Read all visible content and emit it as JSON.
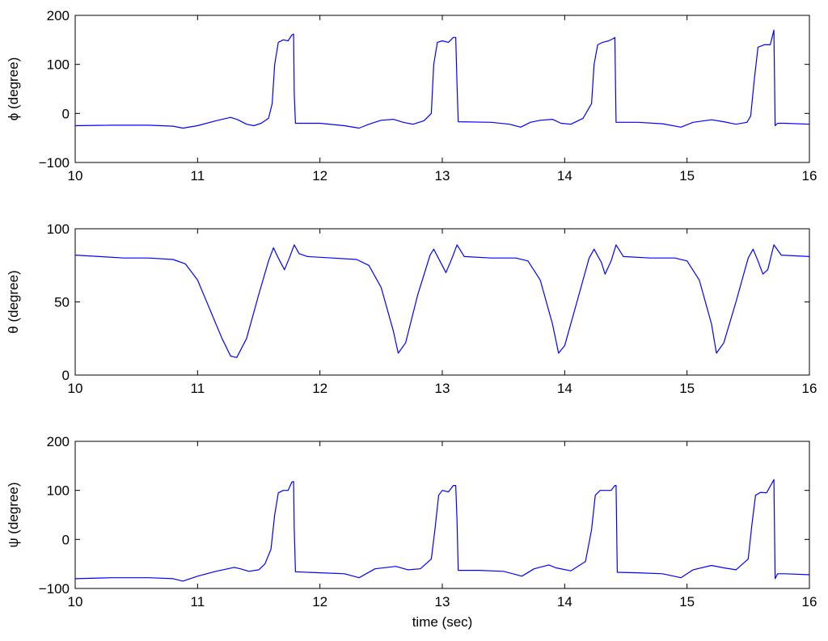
{
  "chart_data": [
    {
      "type": "line",
      "ylabel": "ϕ (degree)",
      "xlabel": "",
      "xlim": [
        10,
        16
      ],
      "ylim": [
        -100,
        200
      ],
      "xticks": [
        10,
        11,
        12,
        13,
        14,
        15,
        16
      ],
      "yticks": [
        -100,
        0,
        100,
        200
      ],
      "grid": false,
      "color": "#0000ff",
      "series": [
        {
          "x": [
            10.0,
            10.3,
            10.6,
            10.8,
            10.88,
            11.0,
            11.15,
            11.27,
            11.33,
            11.4,
            11.46,
            11.52,
            11.58,
            11.61,
            11.63,
            11.66,
            11.7,
            11.74,
            11.77,
            11.785,
            11.79,
            11.8,
            12.0,
            12.2,
            12.32,
            12.4,
            12.5,
            12.6,
            12.68,
            12.76,
            12.85,
            12.91,
            12.93,
            12.96,
            13.0,
            13.05,
            13.09,
            13.11,
            13.12,
            13.13,
            13.4,
            13.55,
            13.64,
            13.72,
            13.8,
            13.9,
            13.97,
            14.05,
            14.15,
            14.22,
            14.24,
            14.27,
            14.31,
            14.36,
            14.4,
            14.41,
            14.42,
            14.6,
            14.8,
            14.95,
            15.05,
            15.2,
            15.3,
            15.4,
            15.49,
            15.52,
            15.55,
            15.58,
            15.63,
            15.68,
            15.71,
            15.72,
            15.74,
            15.8,
            16.0
          ],
          "y": [
            -25,
            -24,
            -24,
            -26,
            -30,
            -25,
            -15,
            -8,
            -13,
            -22,
            -25,
            -20,
            -10,
            20,
            100,
            145,
            150,
            148,
            160,
            162,
            40,
            -20,
            -20,
            -25,
            -30,
            -22,
            -14,
            -12,
            -18,
            -22,
            -15,
            0,
            100,
            145,
            148,
            145,
            155,
            155,
            60,
            -17,
            -18,
            -22,
            -28,
            -18,
            -14,
            -12,
            -20,
            -22,
            -10,
            20,
            100,
            140,
            145,
            148,
            153,
            155,
            -18,
            -18,
            -21,
            -28,
            -18,
            -13,
            -17,
            -22,
            -18,
            -5,
            70,
            135,
            140,
            140,
            170,
            -25,
            -20,
            -20,
            -22
          ]
        }
      ]
    },
    {
      "type": "line",
      "ylabel": "θ (degree)",
      "xlabel": "",
      "xlim": [
        10,
        16
      ],
      "ylim": [
        0,
        100
      ],
      "xticks": [
        10,
        11,
        12,
        13,
        14,
        15,
        16
      ],
      "yticks": [
        0,
        50,
        100
      ],
      "grid": false,
      "color": "#0000ff",
      "series": [
        {
          "x": [
            10.0,
            10.2,
            10.4,
            10.6,
            10.8,
            10.9,
            11.0,
            11.1,
            11.2,
            11.27,
            11.32,
            11.4,
            11.5,
            11.58,
            11.62,
            11.66,
            11.71,
            11.75,
            11.79,
            11.83,
            11.9,
            12.1,
            12.3,
            12.4,
            12.5,
            12.6,
            12.64,
            12.7,
            12.8,
            12.9,
            12.93,
            12.98,
            13.03,
            13.08,
            13.12,
            13.18,
            13.4,
            13.6,
            13.7,
            13.8,
            13.9,
            13.95,
            14.0,
            14.1,
            14.2,
            14.24,
            14.3,
            14.33,
            14.38,
            14.42,
            14.48,
            14.7,
            14.9,
            15.0,
            15.1,
            15.2,
            15.24,
            15.3,
            15.4,
            15.5,
            15.54,
            15.58,
            15.62,
            15.66,
            15.71,
            15.77,
            16.0
          ],
          "y": [
            82,
            81,
            80,
            80,
            79,
            76,
            65,
            45,
            25,
            13,
            12,
            25,
            55,
            78,
            87,
            80,
            72,
            80,
            89,
            83,
            81,
            80,
            79,
            75,
            60,
            30,
            15,
            22,
            55,
            82,
            86,
            78,
            70,
            80,
            89,
            81,
            80,
            80,
            78,
            65,
            35,
            15,
            20,
            50,
            80,
            86,
            77,
            69,
            78,
            89,
            81,
            80,
            80,
            78,
            65,
            35,
            15,
            22,
            50,
            80,
            86,
            78,
            69,
            72,
            89,
            82,
            81
          ]
        }
      ]
    },
    {
      "type": "line",
      "ylabel": "ψ (degree)",
      "xlabel": "time (sec)",
      "xlim": [
        10,
        16
      ],
      "ylim": [
        -100,
        200
      ],
      "xticks": [
        10,
        11,
        12,
        13,
        14,
        15,
        16
      ],
      "yticks": [
        -100,
        0,
        100,
        200
      ],
      "grid": false,
      "color": "#0000ff",
      "series": [
        {
          "x": [
            10.0,
            10.3,
            10.6,
            10.8,
            10.88,
            11.0,
            11.15,
            11.3,
            11.35,
            11.42,
            11.5,
            11.55,
            11.6,
            11.63,
            11.66,
            11.7,
            11.74,
            11.77,
            11.785,
            11.79,
            11.8,
            12.0,
            12.2,
            12.32,
            12.45,
            12.62,
            12.72,
            12.82,
            12.91,
            12.94,
            12.97,
            13.0,
            13.05,
            13.09,
            13.11,
            13.12,
            13.13,
            13.3,
            13.5,
            13.65,
            13.75,
            13.87,
            13.93,
            14.05,
            14.17,
            14.22,
            14.25,
            14.29,
            14.33,
            14.38,
            14.41,
            14.42,
            14.43,
            14.6,
            14.8,
            14.95,
            15.05,
            15.2,
            15.3,
            15.4,
            15.5,
            15.53,
            15.56,
            15.6,
            15.65,
            15.71,
            15.72,
            15.74,
            15.8,
            16.0
          ],
          "y": [
            -80,
            -78,
            -78,
            -80,
            -85,
            -75,
            -65,
            -57,
            -60,
            -65,
            -62,
            -50,
            -20,
            50,
            95,
            100,
            100,
            117,
            118,
            20,
            -66,
            -68,
            -70,
            -78,
            -60,
            -55,
            -62,
            -60,
            -40,
            20,
            90,
            100,
            97,
            110,
            110,
            40,
            -63,
            -63,
            -65,
            -75,
            -60,
            -52,
            -58,
            -64,
            -45,
            20,
            90,
            100,
            100,
            100,
            110,
            110,
            -67,
            -68,
            -70,
            -78,
            -62,
            -53,
            -58,
            -62,
            -40,
            30,
            90,
            96,
            95,
            122,
            -80,
            -70,
            -70,
            -72
          ]
        }
      ]
    }
  ]
}
